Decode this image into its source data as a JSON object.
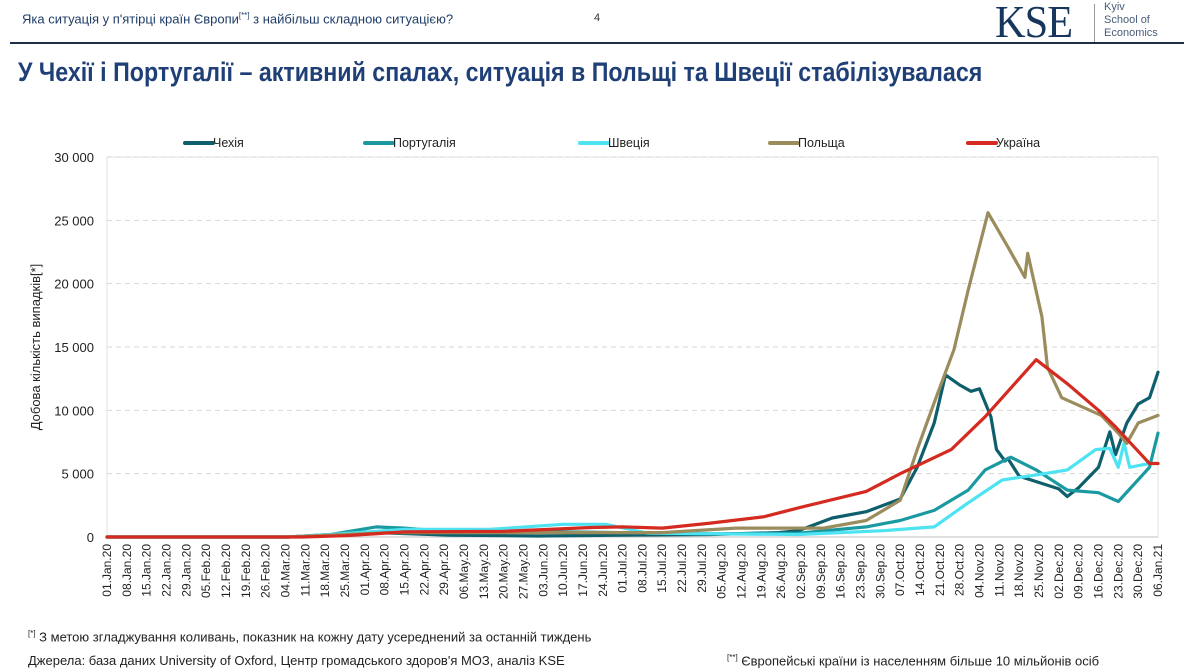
{
  "header": {
    "subtitle_pre": "Яка ситуація у п'ятірці країн Європи",
    "subtitle_sup": "[**]",
    "subtitle_post": " з найбільш складною ситуацією?",
    "page_number": "4",
    "title": "У Чехії і Португалії – активний спалах, ситуація в Польщі та Швеції стабілізувалася"
  },
  "logo": {
    "mark": "KSE",
    "line1": "Kyiv",
    "line2": "School of",
    "line3": "Economics"
  },
  "footer": {
    "note1_sup": "[*]",
    "note1": " З метою згладжування коливань, показник на кожну дату усереднений за останній тиждень",
    "sources": "Джерела: база даних University of Oxford, Центр громадського здоров'я МОЗ, аналіз KSE",
    "note2_sup": "[**]",
    "note2": " Європейські країни із населенням більше 10 мільйонів осіб"
  },
  "chart_data": {
    "type": "line",
    "ylabel": "Добова кількість випадків[*]",
    "ylim": [
      0,
      30000
    ],
    "yticks": [
      "0",
      "5 000",
      "10 000",
      "15 000",
      "20 000",
      "25 000",
      "30 000"
    ],
    "ytick_values": [
      0,
      5000,
      10000,
      15000,
      20000,
      25000,
      30000
    ],
    "xlim": [
      "2020-01-01",
      "2021-01-06"
    ],
    "xticks": [
      "01.Jan.20",
      "08.Jan.20",
      "15.Jan.20",
      "22.Jan.20",
      "29.Jan.20",
      "05.Feb.20",
      "12.Feb.20",
      "19.Feb.20",
      "26.Feb.20",
      "04.Mar.20",
      "11.Mar.20",
      "18.Mar.20",
      "25.Mar.20",
      "01.Apr.20",
      "08.Apr.20",
      "15.Apr.20",
      "22.Apr.20",
      "29.Apr.20",
      "06.May.20",
      "13.May.20",
      "20.May.20",
      "27.May.20",
      "03.Jun.20",
      "10.Jun.20",
      "17.Jun.20",
      "24.Jun.20",
      "01.Jul.20",
      "08.Jul.20",
      "15.Jul.20",
      "22.Jul.20",
      "29.Jul.20",
      "05.Aug.20",
      "12.Aug.20",
      "19.Aug.20",
      "26.Aug.20",
      "02.Sep.20",
      "09.Sep.20",
      "16.Sep.20",
      "23.Sep.20",
      "30.Sep.20",
      "07.Oct.20",
      "14.Oct.20",
      "21.Oct.20",
      "28.Oct.20",
      "04.Nov.20",
      "11.Nov.20",
      "18.Nov.20",
      "25.Nov.20",
      "02.Dec.20",
      "09.Dec.20",
      "16.Dec.20",
      "23.Dec.20",
      "30.Dec.20",
      "06.Jan.21"
    ],
    "grid": "horizontal dashed",
    "legend_position": "top",
    "series": [
      {
        "name": "Чехія",
        "color": "#0e5f6b",
        "points": [
          [
            "2020-01-01",
            0
          ],
          [
            "2020-03-05",
            0
          ],
          [
            "2020-03-25",
            250
          ],
          [
            "2020-04-05",
            350
          ],
          [
            "2020-05-01",
            150
          ],
          [
            "2020-06-01",
            80
          ],
          [
            "2020-07-01",
            150
          ],
          [
            "2020-08-01",
            200
          ],
          [
            "2020-08-25",
            350
          ],
          [
            "2020-09-01",
            500
          ],
          [
            "2020-09-13",
            1500
          ],
          [
            "2020-09-25",
            2000
          ],
          [
            "2020-10-07",
            3000
          ],
          [
            "2020-10-13",
            5500
          ],
          [
            "2020-10-19",
            9000
          ],
          [
            "2020-10-23",
            12800
          ],
          [
            "2020-10-28",
            12000
          ],
          [
            "2020-11-01",
            11500
          ],
          [
            "2020-11-04",
            11700
          ],
          [
            "2020-11-08",
            9500
          ],
          [
            "2020-11-10",
            6900
          ],
          [
            "2020-11-13",
            6000
          ],
          [
            "2020-11-14",
            6200
          ],
          [
            "2020-11-18",
            4800
          ],
          [
            "2020-11-25",
            4300
          ],
          [
            "2020-12-02",
            3800
          ],
          [
            "2020-12-05",
            3200
          ],
          [
            "2020-12-09",
            3900
          ],
          [
            "2020-12-16",
            5500
          ],
          [
            "2020-12-20",
            8300
          ],
          [
            "2020-12-22",
            6500
          ],
          [
            "2020-12-26",
            9000
          ],
          [
            "2020-12-30",
            10500
          ],
          [
            "2021-01-03",
            11000
          ],
          [
            "2021-01-06",
            13000
          ]
        ]
      },
      {
        "name": "Португалія",
        "color": "#1a9aa0",
        "points": [
          [
            "2020-01-01",
            0
          ],
          [
            "2020-03-05",
            0
          ],
          [
            "2020-03-20",
            200
          ],
          [
            "2020-04-05",
            800
          ],
          [
            "2020-04-15",
            700
          ],
          [
            "2020-05-01",
            400
          ],
          [
            "2020-06-10",
            400
          ],
          [
            "2020-07-01",
            350
          ],
          [
            "2020-08-01",
            250
          ],
          [
            "2020-09-01",
            300
          ],
          [
            "2020-09-25",
            800
          ],
          [
            "2020-10-07",
            1300
          ],
          [
            "2020-10-19",
            2100
          ],
          [
            "2020-10-31",
            3700
          ],
          [
            "2020-11-06",
            5300
          ],
          [
            "2020-11-15",
            6300
          ],
          [
            "2020-11-24",
            5300
          ],
          [
            "2020-12-05",
            3700
          ],
          [
            "2020-12-16",
            3500
          ],
          [
            "2020-12-23",
            2800
          ],
          [
            "2021-01-03",
            5500
          ],
          [
            "2021-01-06",
            8200
          ]
        ]
      },
      {
        "name": "Швеція",
        "color": "#4de3f3",
        "points": [
          [
            "2020-01-01",
            0
          ],
          [
            "2020-03-05",
            0
          ],
          [
            "2020-03-20",
            200
          ],
          [
            "2020-04-15",
            600
          ],
          [
            "2020-05-15",
            600
          ],
          [
            "2020-06-10",
            1000
          ],
          [
            "2020-06-25",
            1000
          ],
          [
            "2020-07-10",
            300
          ],
          [
            "2020-08-01",
            250
          ],
          [
            "2020-09-01",
            200
          ],
          [
            "2020-10-01",
            500
          ],
          [
            "2020-10-19",
            800
          ],
          [
            "2020-10-31",
            2700
          ],
          [
            "2020-11-12",
            4500
          ],
          [
            "2020-11-24",
            4900
          ],
          [
            "2020-12-05",
            5300
          ],
          [
            "2020-12-15",
            6900
          ],
          [
            "2020-12-20",
            7000
          ],
          [
            "2020-12-23",
            5500
          ],
          [
            "2020-12-25",
            7400
          ],
          [
            "2020-12-27",
            5500
          ],
          [
            "2021-01-03",
            5800
          ],
          [
            "2021-01-06",
            5800
          ]
        ]
      },
      {
        "name": "Польща",
        "color": "#9a8c5c",
        "points": [
          [
            "2020-01-01",
            0
          ],
          [
            "2020-03-05",
            0
          ],
          [
            "2020-04-10",
            350
          ],
          [
            "2020-06-01",
            350
          ],
          [
            "2020-07-15",
            350
          ],
          [
            "2020-08-10",
            700
          ],
          [
            "2020-09-10",
            700
          ],
          [
            "2020-09-25",
            1300
          ],
          [
            "2020-10-07",
            2900
          ],
          [
            "2020-10-13",
            6900
          ],
          [
            "2020-10-19",
            10600
          ],
          [
            "2020-10-26",
            14800
          ],
          [
            "2020-10-31",
            19500
          ],
          [
            "2020-11-07",
            25600
          ],
          [
            "2020-11-14",
            22900
          ],
          [
            "2020-11-20",
            20500
          ],
          [
            "2020-11-21",
            22400
          ],
          [
            "2020-11-26",
            17400
          ],
          [
            "2020-11-28",
            13400
          ],
          [
            "2020-12-03",
            11000
          ],
          [
            "2020-12-17",
            9600
          ],
          [
            "2020-12-23",
            8200
          ],
          [
            "2020-12-26",
            7400
          ],
          [
            "2020-12-30",
            9000
          ],
          [
            "2021-01-06",
            9600
          ]
        ]
      },
      {
        "name": "Україна",
        "color": "#d42a1f",
        "points": [
          [
            "2020-01-01",
            0
          ],
          [
            "2020-03-10",
            0
          ],
          [
            "2020-03-25",
            100
          ],
          [
            "2020-04-15",
            400
          ],
          [
            "2020-05-20",
            450
          ],
          [
            "2020-06-20",
            750
          ],
          [
            "2020-07-01",
            800
          ],
          [
            "2020-07-15",
            700
          ],
          [
            "2020-08-01",
            1100
          ],
          [
            "2020-08-20",
            1600
          ],
          [
            "2020-09-01",
            2300
          ],
          [
            "2020-09-25",
            3600
          ],
          [
            "2020-10-07",
            5000
          ],
          [
            "2020-10-25",
            6900
          ],
          [
            "2020-11-06",
            9500
          ],
          [
            "2020-11-24",
            14000
          ],
          [
            "2020-12-05",
            12100
          ],
          [
            "2020-12-16",
            10000
          ],
          [
            "2020-12-22",
            8700
          ],
          [
            "2021-01-03",
            5800
          ],
          [
            "2021-01-06",
            5800
          ]
        ]
      }
    ]
  }
}
